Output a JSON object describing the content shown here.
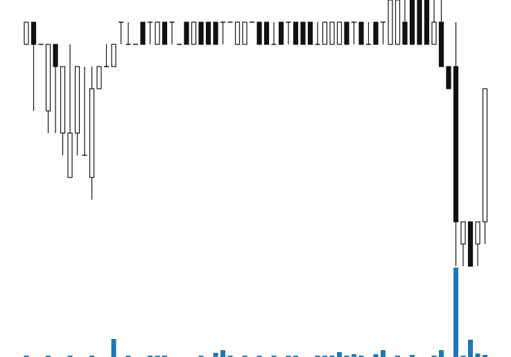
{
  "chart_data": {
    "type": "candlestick",
    "open": [
      11,
      12,
      11,
      8,
      11,
      7,
      5,
      7,
      6,
      5,
      9,
      10,
      10,
      12,
      11,
      11,
      12,
      12,
      11,
      12,
      12,
      11,
      12,
      11,
      12,
      12,
      12,
      12,
      12,
      11,
      11,
      12,
      12,
      12,
      11,
      12,
      12,
      12,
      12,
      12,
      11,
      11,
      11,
      11,
      12,
      12,
      12,
      11,
      12,
      12,
      11,
      11,
      12,
      13,
      13,
      13,
      11,
      12,
      10,
      10,
      2,
      3,
      2,
      3
    ],
    "high": [
      12,
      12,
      11,
      11,
      11,
      10,
      11,
      10,
      10,
      10,
      10,
      11,
      11,
      12,
      12,
      11,
      12,
      12,
      12,
      12,
      12,
      11,
      12,
      12,
      12,
      12,
      12,
      12,
      12,
      12,
      12,
      12,
      12,
      12,
      12,
      12,
      12,
      12,
      12,
      12,
      12,
      12,
      12,
      12,
      12,
      12,
      12,
      12,
      12,
      12,
      13,
      13,
      13,
      13,
      13,
      13,
      13,
      13,
      10,
      12,
      3,
      3,
      3,
      9
    ],
    "low": [
      11,
      8,
      11,
      7,
      7,
      6,
      5,
      6,
      6,
      4,
      9,
      10,
      10,
      11,
      11,
      11,
      11,
      11,
      11,
      11,
      11,
      11,
      11,
      11,
      11,
      11,
      11,
      11,
      12,
      11,
      11,
      12,
      11,
      11,
      11,
      11,
      11,
      11,
      11,
      11,
      11,
      11,
      11,
      11,
      11,
      11,
      11,
      11,
      11,
      11,
      11,
      11,
      11,
      11,
      11,
      11,
      11,
      10,
      9,
      1,
      1,
      1,
      1,
      2
    ],
    "close": [
      12,
      11,
      11,
      11,
      10,
      10,
      7,
      10,
      6,
      9,
      10,
      10,
      11,
      12,
      11,
      11,
      11,
      12,
      12,
      11,
      12,
      11,
      11,
      12,
      11,
      11,
      11,
      12,
      12,
      12,
      12,
      12,
      11,
      11,
      11,
      11,
      12,
      11,
      11,
      11,
      11,
      12,
      12,
      12,
      11,
      12,
      11,
      11,
      11,
      12,
      13,
      13,
      11,
      11,
      11,
      11,
      12,
      10,
      9,
      3,
      3,
      1,
      3,
      9
    ],
    "volume": [
      2,
      0,
      0,
      2,
      0,
      0,
      2,
      0,
      0,
      2,
      0,
      0,
      26,
      0,
      2,
      0,
      0,
      2,
      2,
      2,
      0,
      0,
      0,
      0,
      2,
      0,
      6,
      10,
      2,
      0,
      2,
      0,
      2,
      0,
      2,
      0,
      2,
      2,
      0,
      0,
      2,
      2,
      2,
      7,
      2,
      4,
      2,
      0,
      4,
      10,
      0,
      2,
      0,
      3,
      0,
      0,
      2,
      10,
      0,
      129,
      2,
      25,
      5,
      3
    ],
    "ylim": [
      0,
      13
    ],
    "volume_lim": [
      0,
      129
    ],
    "up_color": "#ffffff",
    "down_color": "#111111",
    "edge_color": "#111111",
    "volume_color": "#1f77b4"
  }
}
